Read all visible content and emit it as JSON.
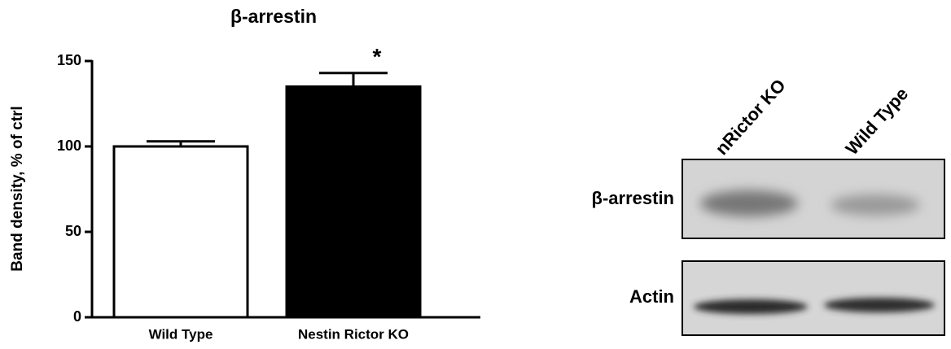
{
  "chart_data": {
    "type": "bar",
    "title": "β-arrestin",
    "y_label": "Band density, % of ctrl",
    "categories": [
      "Wild Type",
      "Nestin Rictor KO"
    ],
    "values": [
      100,
      135
    ],
    "errors": [
      3,
      8
    ],
    "colors": [
      "#ffffff",
      "#000000"
    ],
    "annotation": "*",
    "ylim": [
      0,
      150
    ],
    "yticks": [
      0,
      50,
      100,
      150
    ]
  },
  "blot": {
    "lanes": [
      "nRictor KO",
      "Wild Type"
    ],
    "rows": [
      "β-arrestin",
      "Actin"
    ]
  }
}
